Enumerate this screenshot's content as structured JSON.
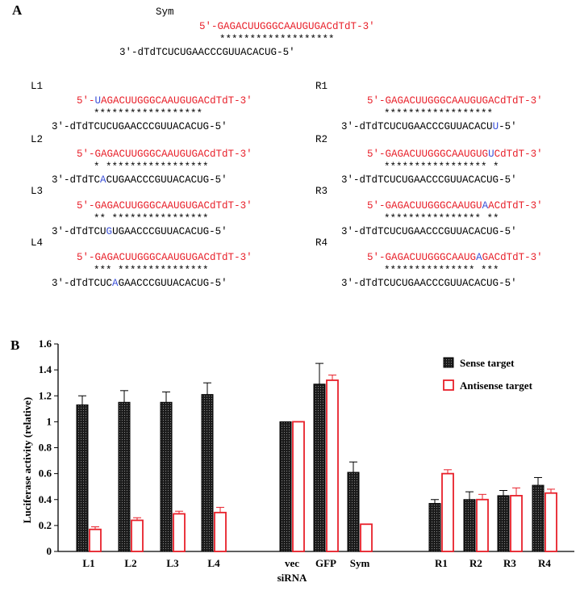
{
  "panel_a": {
    "label": "A",
    "sequences": [
      {
        "name": "Sym",
        "top": [
          "5'",
          "-",
          "GAGACUUGGGCAAUGUGACdTdT",
          "-",
          "3'"
        ],
        "match": "*******************",
        "bottom": [
          "3'",
          "-",
          "dTdTCUCUGAACCCGUUACACUG",
          "-",
          "5'"
        ]
      },
      {
        "name": "L1",
        "top": [
          "5'",
          "-",
          "",
          "U",
          "AGACUUGGGCAAUGUGACdTdT",
          "-",
          "3'"
        ],
        "match": "******************",
        "bottom": [
          "3'",
          "-",
          "dTdTCUCUGAACCCGUUACACUG",
          "",
          "",
          "-",
          "5'"
        ]
      },
      {
        "name": "L2",
        "top": [
          "5'",
          "-",
          "GAGACUUGGGCAAUGUGACdTdT",
          "",
          "",
          "-",
          "3'"
        ],
        "match": "* *****************",
        "bottom": [
          "3'",
          "-",
          "dTdTC",
          "A",
          "CUGAACCCGUUACACUG",
          "-",
          "5'"
        ]
      },
      {
        "name": "L3",
        "top": [
          "5'",
          "-",
          "GAGACUUGGGCAAUGUGACdTdT",
          "",
          "",
          "-",
          "3'"
        ],
        "match": "** ****************",
        "bottom": [
          "3'",
          "-",
          "dTdTCU",
          "G",
          "UGAACCCGUUACACUG",
          "-",
          "5'"
        ]
      },
      {
        "name": "L4",
        "top": [
          "5'",
          "-",
          "GAGACUUGGGCAAUGUGACdTdT",
          "",
          "",
          "-",
          "3'"
        ],
        "match": "*** ***************",
        "bottom": [
          "3'",
          "-",
          "dTdTCUC",
          "A",
          "GAACCCGUUACACUG",
          "-",
          "5'"
        ]
      },
      {
        "name": "R1",
        "top": [
          "5'",
          "-",
          "GAGACUUGGGCAAUGUGACdTdT",
          "",
          "",
          "-",
          "3'"
        ],
        "match": "******************",
        "bottom": [
          "3'",
          "-",
          "dTdTCUCUGAACCCGUUACACU",
          "U",
          "",
          "-",
          "5'"
        ]
      },
      {
        "name": "R2",
        "top": [
          "5'",
          "-",
          "GAGACUUGGGCAAUGUG",
          "U",
          "CdTdT",
          "-",
          "3'"
        ],
        "match": "***************** *",
        "bottom": [
          "3'",
          "-",
          "dTdTCUCUGAACCCGUUACACUG",
          "",
          "",
          "-",
          "5'"
        ]
      },
      {
        "name": "R3",
        "top": [
          "5'",
          "-",
          "GAGACUUGGGCAAUGU",
          "A",
          "ACdTdT",
          "-",
          "3'"
        ],
        "match": "**************** **",
        "bottom": [
          "3'",
          "-",
          "dTdTCUCUGAACCCGUUACACUG",
          "",
          "",
          "-",
          "5'"
        ]
      },
      {
        "name": "R4",
        "top": [
          "5'",
          "-",
          "GAGACUUGGGCAAUG",
          "A",
          "GACdTdT",
          "-",
          "3'"
        ],
        "match": "*************** ***",
        "bottom": [
          "3'",
          "-",
          "dTdTCUCUGAACCCGUUACACUG",
          "",
          "",
          "-",
          "5'"
        ]
      }
    ]
  },
  "panel_b": {
    "label": "B"
  },
  "chart_data": {
    "type": "bar",
    "title": "",
    "xlabel": "siRNA",
    "ylabel": "Luciferase activity (relative)",
    "ylim": [
      0,
      1.6
    ],
    "yticks": [
      "0",
      "0.2",
      "0.4",
      "0.6",
      "0.8",
      "1",
      "1.2",
      "1.4",
      "1.6"
    ],
    "categories": [
      "L1",
      "L2",
      "L3",
      "L4",
      "vec",
      "GFP",
      "Sym",
      "R1",
      "R2",
      "R3",
      "R4"
    ],
    "series": [
      {
        "name": "Sense target",
        "color": "#222222",
        "values": [
          1.13,
          1.15,
          1.15,
          1.21,
          1.0,
          1.29,
          0.61,
          0.37,
          0.4,
          0.43,
          0.51
        ],
        "errors": [
          0.07,
          0.09,
          0.08,
          0.09,
          0.0,
          0.16,
          0.08,
          0.03,
          0.06,
          0.04,
          0.06
        ]
      },
      {
        "name": "Antisense target",
        "color": "#e8202a",
        "values": [
          0.17,
          0.24,
          0.29,
          0.3,
          1.0,
          1.32,
          0.21,
          0.6,
          0.4,
          0.43,
          0.45
        ],
        "errors": [
          0.02,
          0.02,
          0.02,
          0.04,
          0.0,
          0.04,
          0.0,
          0.03,
          0.04,
          0.06,
          0.03
        ]
      }
    ],
    "legend": "top-right",
    "grid": false
  }
}
